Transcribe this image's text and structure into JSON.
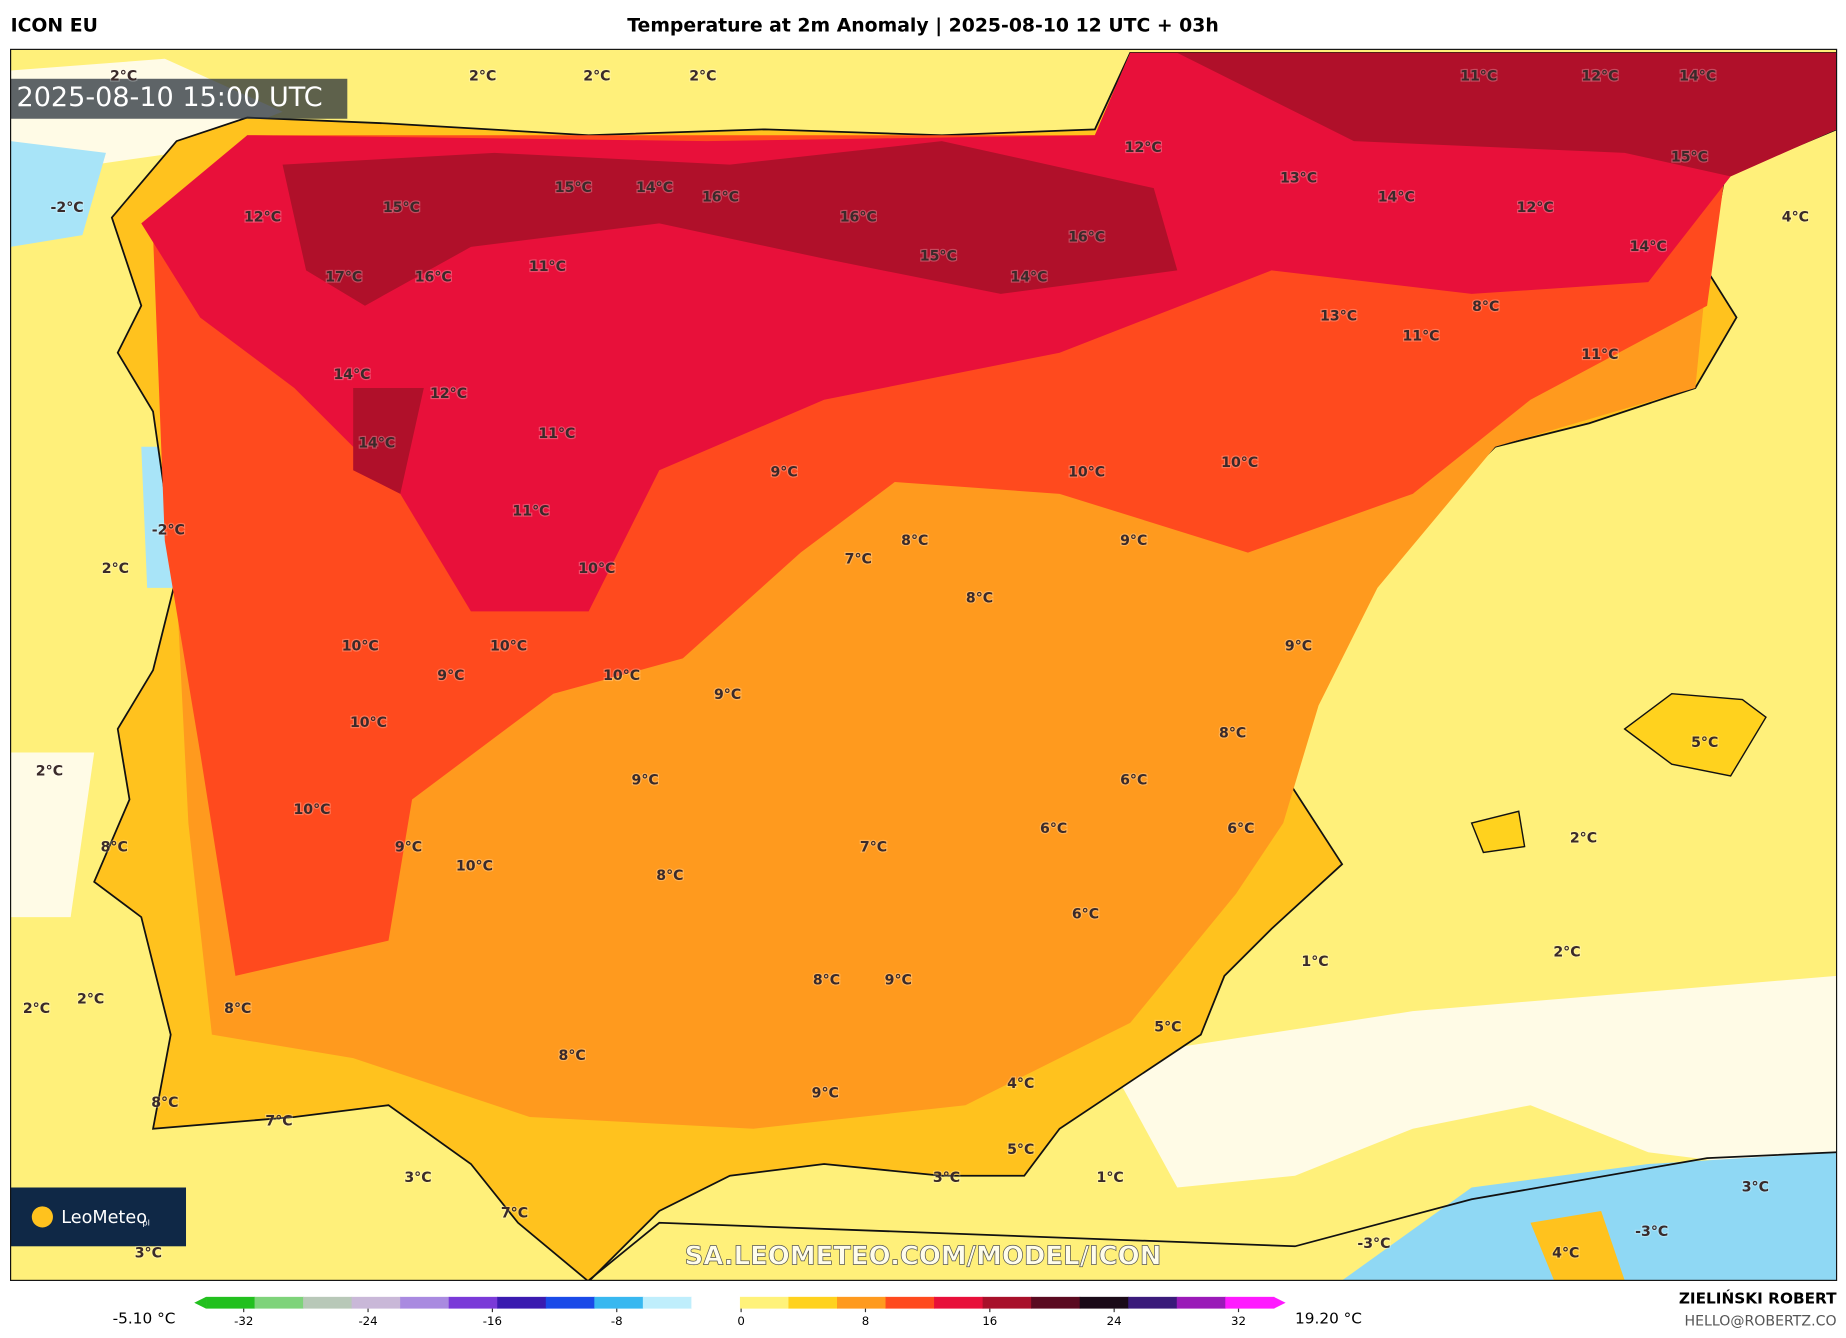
{
  "header": {
    "model": "ICON EU",
    "title": "Temperature at 2m Anomaly | 2025-08-10 12 UTC + 03h"
  },
  "map": {
    "timestamp": "2025-08-10 15:00 UTC",
    "watermark": "SA.LEOMETEO.COM/MODEL/ICON",
    "logo": "LeoMeteo",
    "logo_suffix": "pl",
    "labels": [
      "2°C",
      "2°C",
      "2°C",
      "2°C",
      "-2°C",
      "12°C",
      "15°C",
      "15°C",
      "14°C",
      "16°C",
      "16°C",
      "16°C",
      "15°C",
      "14°C",
      "17°C",
      "16°C",
      "11°C",
      "12°C",
      "13°C",
      "11°C",
      "12°C",
      "14°C",
      "15°C",
      "14°C",
      "12°C",
      "4°C",
      "14°C",
      "13°C",
      "8°C",
      "11°C",
      "11°C",
      "14°C",
      "12°C",
      "14°C",
      "11°C",
      "9°C",
      "10°C",
      "10°C",
      "11°C",
      "-2°C",
      "2°C",
      "7°C",
      "8°C",
      "9°C",
      "10°C",
      "8°C",
      "9°C",
      "10°C",
      "10°C",
      "9°C",
      "10°C",
      "9°C",
      "10°C",
      "8°C",
      "5°C",
      "2°C",
      "9°C",
      "6°C",
      "10°C",
      "6°C",
      "6°C",
      "2°C",
      "8°C",
      "9°C",
      "7°C",
      "10°C",
      "8°C",
      "6°C",
      "1°C",
      "2°C",
      "8°C",
      "9°C",
      "2°C",
      "2°C",
      "8°C",
      "5°C",
      "8°C",
      "4°C",
      "8°C",
      "9°C",
      "7°C",
      "5°C",
      "3°C",
      "3°C",
      "1°C",
      "3°C",
      "7°C",
      "-3°C",
      "-3°C",
      "4°C",
      "3°C"
    ]
  },
  "legend": {
    "min_label": "-5.10 °C",
    "max_label": "19.20 °C",
    "ticks": [
      -32,
      -24,
      -16,
      -8,
      0,
      8,
      16,
      24,
      32
    ],
    "colors": [
      "#22c01e",
      "#7ed37a",
      "#b8c8b8",
      "#c9b8d8",
      "#a98ae0",
      "#7a3ad8",
      "#3a1ab0",
      "#1a4ae8",
      "#38b8f0",
      "#bfeefc",
      "#ffffff",
      "#fff27a",
      "#ffd21e",
      "#ff9a1e",
      "#ff4a1e",
      "#e8103a",
      "#a8102a",
      "#5a0a20",
      "#1a0a18",
      "#3a1a7a",
      "#9a1ab8",
      "#ff1aff"
    ]
  },
  "footer": {
    "author": "ZIELIŃSKI ROBERT",
    "email": "HELLO@ROBERTZ.CO"
  }
}
